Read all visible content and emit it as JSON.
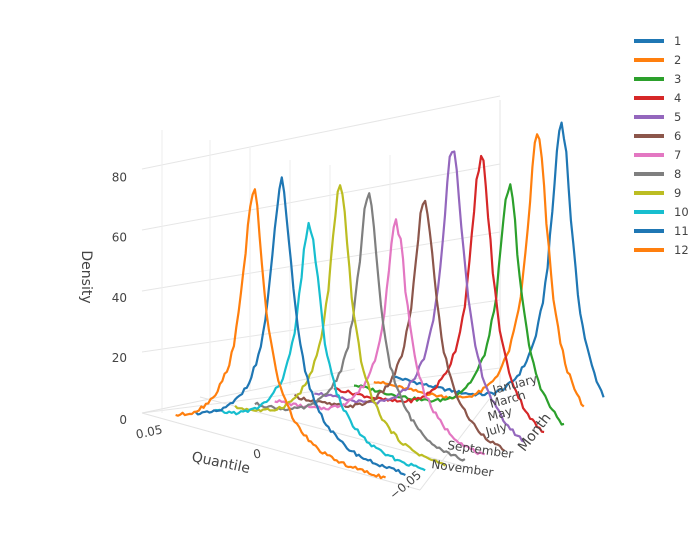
{
  "chart_data": {
    "type": "line",
    "dimensions": "3d",
    "axes": {
      "x": {
        "title": "Quantile",
        "ticks": [
          "0.05",
          "0",
          "−0.05"
        ]
      },
      "y": {
        "title": "Month",
        "ticks": [
          "January",
          "March",
          "May",
          "July",
          "September",
          "November"
        ]
      },
      "z": {
        "title": "Density",
        "ticks": [
          "0",
          "20",
          "40",
          "60",
          "80"
        ],
        "range": [
          0,
          90
        ]
      }
    },
    "grid": true,
    "legend_position": "top-right",
    "series": [
      {
        "name": "1",
        "month": 1,
        "color": "#1f77b4",
        "peak": 84,
        "center": -0.03
      },
      {
        "name": "2",
        "month": 2,
        "color": "#ff7f0e",
        "peak": 81,
        "center": -0.028
      },
      {
        "name": "3",
        "month": 3,
        "color": "#2ca02c",
        "peak": 67,
        "center": -0.024
      },
      {
        "name": "4",
        "month": 4,
        "color": "#d62728",
        "peak": 76,
        "center": -0.02
      },
      {
        "name": "5",
        "month": 5,
        "color": "#9467bd",
        "peak": 80,
        "center": -0.016
      },
      {
        "name": "6",
        "month": 6,
        "color": "#8c564b",
        "peak": 65,
        "center": -0.012
      },
      {
        "name": "7",
        "month": 7,
        "color": "#e377c2",
        "peak": 59,
        "center": -0.008
      },
      {
        "name": "8",
        "month": 8,
        "color": "#7f7f7f",
        "peak": 67,
        "center": -0.004
      },
      {
        "name": "9",
        "month": 9,
        "color": "#bcbd22",
        "peak": 69,
        "center": 0.0
      },
      {
        "name": "10",
        "month": 10,
        "color": "#17becf",
        "peak": 60,
        "center": 0.005
      },
      {
        "name": "11",
        "month": 11,
        "color": "#1f77b4",
        "peak": 72,
        "center": 0.009
      },
      {
        "name": "12",
        "month": 12,
        "color": "#ff7f0e",
        "peak": 70,
        "center": 0.013
      }
    ]
  }
}
